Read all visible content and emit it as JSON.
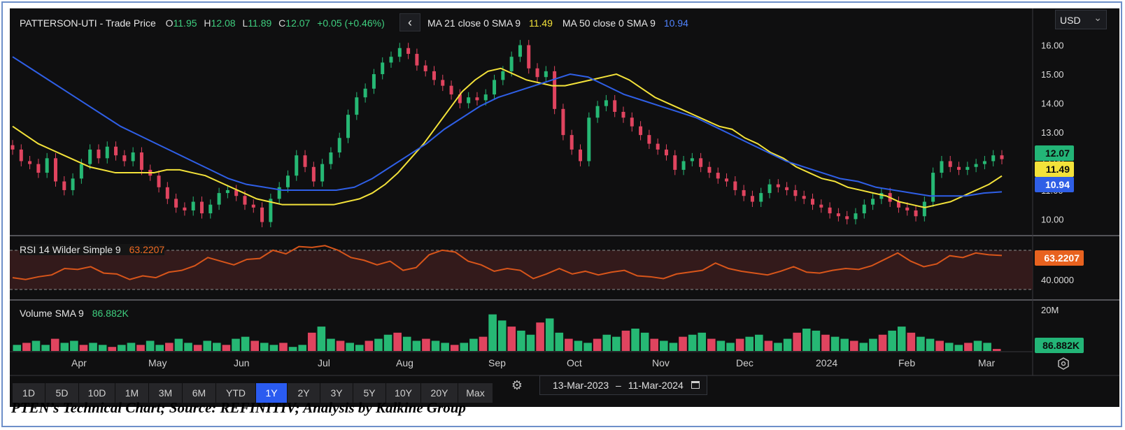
{
  "header": {
    "title": "PATTERSON-UTI - Trade Price",
    "ohlc": [
      {
        "label": "O",
        "value": "11.95"
      },
      {
        "label": "H",
        "value": "12.08"
      },
      {
        "label": "L",
        "value": "11.89"
      },
      {
        "label": "C",
        "value": "12.07"
      }
    ],
    "change": "+0.05 (+0.46%)",
    "ma1_label": "MA 21 close 0 SMA 9",
    "ma1_value": "11.49",
    "ma2_label": "MA 50 close 0 SMA 9",
    "ma2_value": "10.94",
    "collapse_glyph": "‹"
  },
  "currency": {
    "selected": "USD",
    "chevron": "⌄"
  },
  "rsi_panel": {
    "label": "RSI 14 Wilder Simple 9",
    "value": "63.2207"
  },
  "volume_panel": {
    "label": "Volume SMA 9",
    "value": "86.882K"
  },
  "ranges": {
    "buttons": [
      "1D",
      "5D",
      "10D",
      "1M",
      "3M",
      "6M",
      "YTD",
      "1Y",
      "2Y",
      "3Y",
      "5Y",
      "10Y",
      "20Y",
      "Max"
    ],
    "active": "1Y",
    "settings_icon": "gear-icon",
    "date_from": "13-Mar-2023",
    "date_sep": "–",
    "date_to": "11-Mar-2024",
    "calendar_icon": "calendar-icon"
  },
  "caption": "PTEN’s Technical Chart; Source: REFINITIV; Analysis by Kalkine Group",
  "colors": {
    "up": "#26b874",
    "down": "#e0445f",
    "ma21": "#f3e23a",
    "ma50": "#2f5fe6",
    "rsi": "#d8551a",
    "background": "#0f0f10",
    "accent": "#2a5bf0"
  },
  "chart_data": [
    {
      "type": "candlestick",
      "title": "PATTERSON-UTI - Trade Price",
      "ylim": [
        9.6,
        16.4
      ],
      "yticks": [
        "16.00",
        "15.00",
        "14.00",
        "13.00",
        "12.00",
        "11.00",
        "10.00"
      ],
      "last_labels": [
        {
          "series": "Close",
          "value": "12.07",
          "color": "#26b874"
        },
        {
          "series": "MA 21",
          "value": "11.49",
          "color": "#f3e23a"
        },
        {
          "series": "MA 50",
          "value": "10.94",
          "color": "#2f5fe6"
        }
      ],
      "close_series": [
        12.4,
        12.0,
        11.9,
        11.6,
        12.1,
        11.3,
        11.0,
        11.4,
        11.9,
        12.4,
        12.1,
        12.5,
        12.2,
        12.0,
        12.3,
        11.7,
        11.5,
        11.1,
        10.7,
        10.4,
        10.3,
        10.6,
        10.2,
        10.5,
        10.9,
        11.0,
        10.8,
        10.5,
        10.4,
        9.9,
        10.7,
        11.1,
        11.5,
        12.2,
        11.8,
        11.3,
        11.9,
        12.3,
        12.8,
        13.6,
        14.2,
        14.5,
        15.0,
        15.4,
        15.6,
        15.9,
        15.7,
        15.3,
        15.1,
        14.8,
        14.6,
        14.3,
        14.0,
        14.2,
        14.1,
        14.3,
        14.8,
        15.1,
        15.6,
        16.0,
        15.2,
        14.9,
        15.1,
        13.8,
        12.9,
        12.4,
        12.0,
        13.5,
        13.9,
        14.1,
        13.7,
        13.5,
        13.2,
        12.9,
        12.6,
        12.4,
        12.2,
        11.7,
        12.0,
        12.1,
        11.8,
        11.6,
        11.4,
        11.3,
        11.0,
        10.8,
        10.6,
        10.9,
        11.2,
        11.1,
        11.0,
        10.8,
        10.7,
        10.5,
        10.4,
        10.2,
        10.1,
        10.0,
        10.2,
        10.5,
        10.7,
        10.9,
        10.6,
        10.4,
        10.3,
        10.1,
        10.6,
        11.6,
        12.0,
        11.8,
        11.7,
        11.8,
        11.9,
        12.0,
        12.2,
        12.07
      ],
      "ma_series": [
        {
          "name": "MA 21",
          "color": "#f3e23a",
          "values": [
            13.2,
            12.9,
            12.6,
            12.4,
            12.2,
            12.0,
            11.8,
            11.7,
            11.6,
            11.6,
            11.6,
            11.6,
            11.7,
            11.7,
            11.6,
            11.5,
            11.3,
            11.1,
            10.9,
            10.7,
            10.6,
            10.5,
            10.5,
            10.5,
            10.5,
            10.5,
            10.6,
            10.7,
            10.9,
            11.2,
            11.6,
            12.1,
            12.6,
            13.2,
            13.8,
            14.4,
            14.8,
            15.1,
            15.2,
            15.0,
            14.8,
            14.7,
            14.6,
            14.6,
            14.7,
            14.8,
            14.9,
            15.0,
            14.8,
            14.5,
            14.2,
            14.0,
            13.8,
            13.6,
            13.4,
            13.2,
            13.1,
            12.8,
            12.6,
            12.3,
            12.1,
            11.8,
            11.6,
            11.4,
            11.3,
            11.1,
            11.0,
            10.9,
            10.8,
            10.6,
            10.5,
            10.4,
            10.5,
            10.6,
            10.8,
            11.0,
            11.2,
            11.49
          ]
        },
        {
          "name": "MA 50",
          "color": "#2f5fe6",
          "values": [
            15.6,
            15.2,
            14.8,
            14.4,
            14.0,
            13.6,
            13.2,
            12.9,
            12.6,
            12.3,
            12.0,
            11.7,
            11.4,
            11.2,
            11.1,
            11.0,
            11.0,
            11.0,
            11.0,
            11.1,
            11.4,
            11.8,
            12.2,
            12.6,
            13.1,
            13.5,
            13.9,
            14.2,
            14.4,
            14.6,
            14.8,
            15.0,
            14.9,
            14.6,
            14.3,
            14.1,
            13.9,
            13.7,
            13.5,
            13.2,
            12.9,
            12.6,
            12.3,
            12.0,
            11.8,
            11.6,
            11.4,
            11.3,
            11.1,
            11.0,
            10.9,
            10.8,
            10.8,
            10.8,
            10.9,
            10.94
          ]
        }
      ]
    },
    {
      "type": "line",
      "title": "RSI 14 Wilder Simple 9",
      "ylim": [
        20,
        75
      ],
      "yticks": [
        "40.0000"
      ],
      "last_value": 63.2207,
      "values": [
        39,
        37,
        40,
        42,
        49,
        48,
        51,
        44,
        43,
        37,
        41,
        39,
        45,
        47,
        52,
        61,
        57,
        53,
        59,
        60,
        69,
        65,
        73,
        72,
        74,
        69,
        61,
        58,
        53,
        57,
        47,
        50,
        64,
        69,
        67,
        57,
        53,
        46,
        49,
        47,
        38,
        43,
        49,
        43,
        46,
        42,
        45,
        47,
        41,
        40,
        38,
        43,
        45,
        47,
        55,
        49,
        46,
        44,
        42,
        46,
        51,
        45,
        44,
        47,
        49,
        48,
        52,
        59,
        66,
        57,
        51,
        54,
        63,
        61,
        66,
        64,
        63.2207
      ]
    },
    {
      "type": "bar",
      "title": "Volume SMA 9",
      "ylim": [
        0,
        22
      ],
      "yticks": [
        "20M"
      ],
      "last_value": "86.882K",
      "values": [
        3,
        4,
        5,
        3,
        6,
        4,
        5,
        3,
        4,
        3,
        2,
        3,
        4,
        3,
        5,
        3,
        4,
        6,
        4,
        3,
        5,
        4,
        3,
        6,
        7,
        5,
        4,
        3,
        4,
        2,
        3,
        9,
        12,
        6,
        5,
        4,
        3,
        5,
        6,
        8,
        9,
        7,
        5,
        6,
        5,
        4,
        3,
        4,
        6,
        7,
        18,
        15,
        12,
        10,
        8,
        14,
        16,
        9,
        6,
        5,
        4,
        6,
        8,
        7,
        10,
        11,
        9,
        6,
        5,
        4,
        7,
        8,
        9,
        6,
        5,
        4,
        6,
        7,
        8,
        5,
        4,
        6,
        9,
        11,
        10,
        8,
        7,
        6,
        5,
        4,
        6,
        8,
        10,
        12,
        9,
        7,
        6,
        5,
        4,
        3,
        4,
        5,
        4,
        1
      ],
      "x_ticks": [
        "Apr",
        "May",
        "Jun",
        "Jul",
        "Aug",
        "Sep",
        "Oct",
        "Nov",
        "Dec",
        "2024",
        "Feb",
        "Mar"
      ]
    }
  ]
}
